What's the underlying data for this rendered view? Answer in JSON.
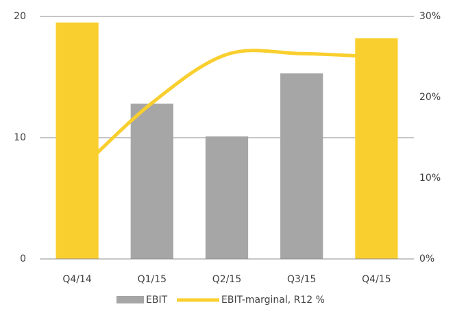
{
  "chart_data": {
    "type": "bar",
    "categories": [
      "Q4/14",
      "Q1/15",
      "Q2/15",
      "Q3/15",
      "Q4/15"
    ],
    "series": [
      {
        "name": "EBIT",
        "color": "#a6a6a6",
        "colors": [
          "#f9cf2f",
          "#a6a6a6",
          "#a6a6a6",
          "#a6a6a6",
          "#f9cf2f"
        ],
        "values": [
          19.5,
          12.8,
          10.1,
          15.3,
          18.2
        ]
      },
      {
        "name": "EBIT-marginal, R12 %",
        "type": "line",
        "axis": "y2",
        "color": "#f9cf2f",
        "values": [
          10.7,
          19.3,
          25.3,
          25.4,
          25.0
        ]
      }
    ],
    "ylim": [
      0,
      20
    ],
    "yticks": [
      0,
      10,
      20
    ],
    "y2lim": [
      0,
      30
    ],
    "y2ticks": [
      {
        "value": 0,
        "label": "0%"
      },
      {
        "value": 10,
        "label": "10%"
      },
      {
        "value": 20,
        "label": "20%"
      },
      {
        "value": 30,
        "label": "30%"
      }
    ],
    "grid": true,
    "legend": "bottom"
  }
}
